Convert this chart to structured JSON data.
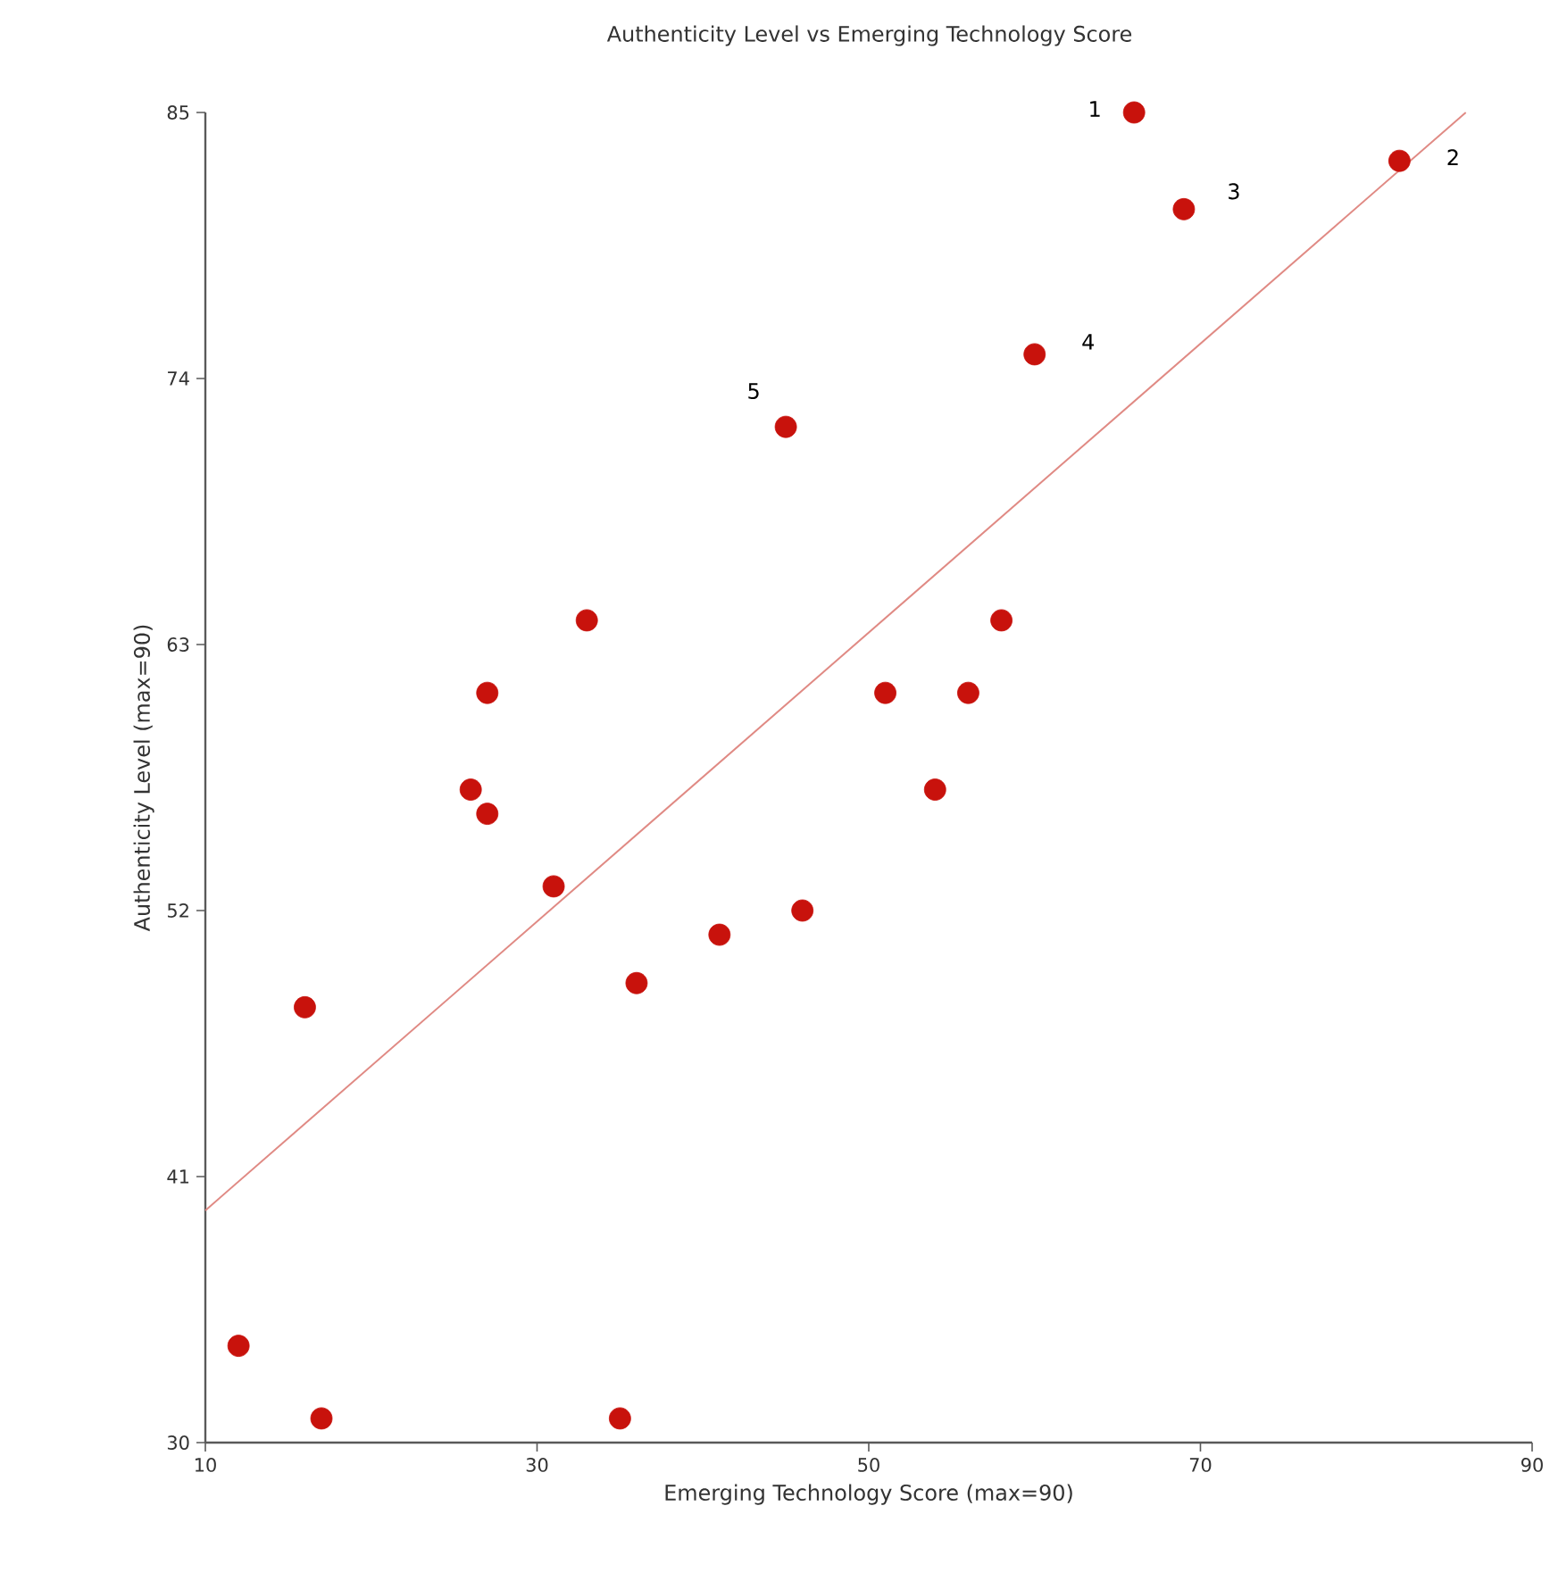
{
  "chart_data": {
    "type": "scatter",
    "title": "Authenticity Level vs Emerging Technology Score",
    "xlabel": "Emerging Technology Score (max=90)",
    "ylabel": "Authenticity Level  (max=90)",
    "xlim": [
      10,
      90
    ],
    "xticks": [
      10,
      30,
      50,
      70,
      90
    ],
    "ylim": [
      30,
      85
    ],
    "yticks": [
      30,
      41,
      52,
      63,
      74,
      85
    ],
    "grid": false,
    "series": [
      {
        "type": "scatter",
        "color": "#c8120c",
        "x": [
          66,
          82,
          69,
          60,
          45,
          58,
          33,
          27,
          51,
          56,
          26,
          27,
          54,
          31,
          46,
          41,
          36,
          16,
          12,
          17,
          35
        ],
        "values": [
          85,
          83,
          81,
          75,
          72,
          64,
          64,
          61,
          61,
          61,
          57,
          56,
          57,
          53,
          52,
          51,
          49,
          48,
          34,
          31,
          31
        ]
      },
      {
        "type": "line",
        "color": "#e08a84",
        "line_style": "solid",
        "x": [
          10,
          86
        ],
        "values": [
          39.6,
          85
        ]
      }
    ],
    "annotations": [
      {
        "text": "1",
        "x": 66,
        "y": 85
      },
      {
        "text": "2",
        "x": 82,
        "y": 83
      },
      {
        "text": "3",
        "x": 69,
        "y": 81
      },
      {
        "text": "4",
        "x": 60,
        "y": 75
      },
      {
        "text": "5",
        "x": 45,
        "y": 72
      }
    ]
  }
}
